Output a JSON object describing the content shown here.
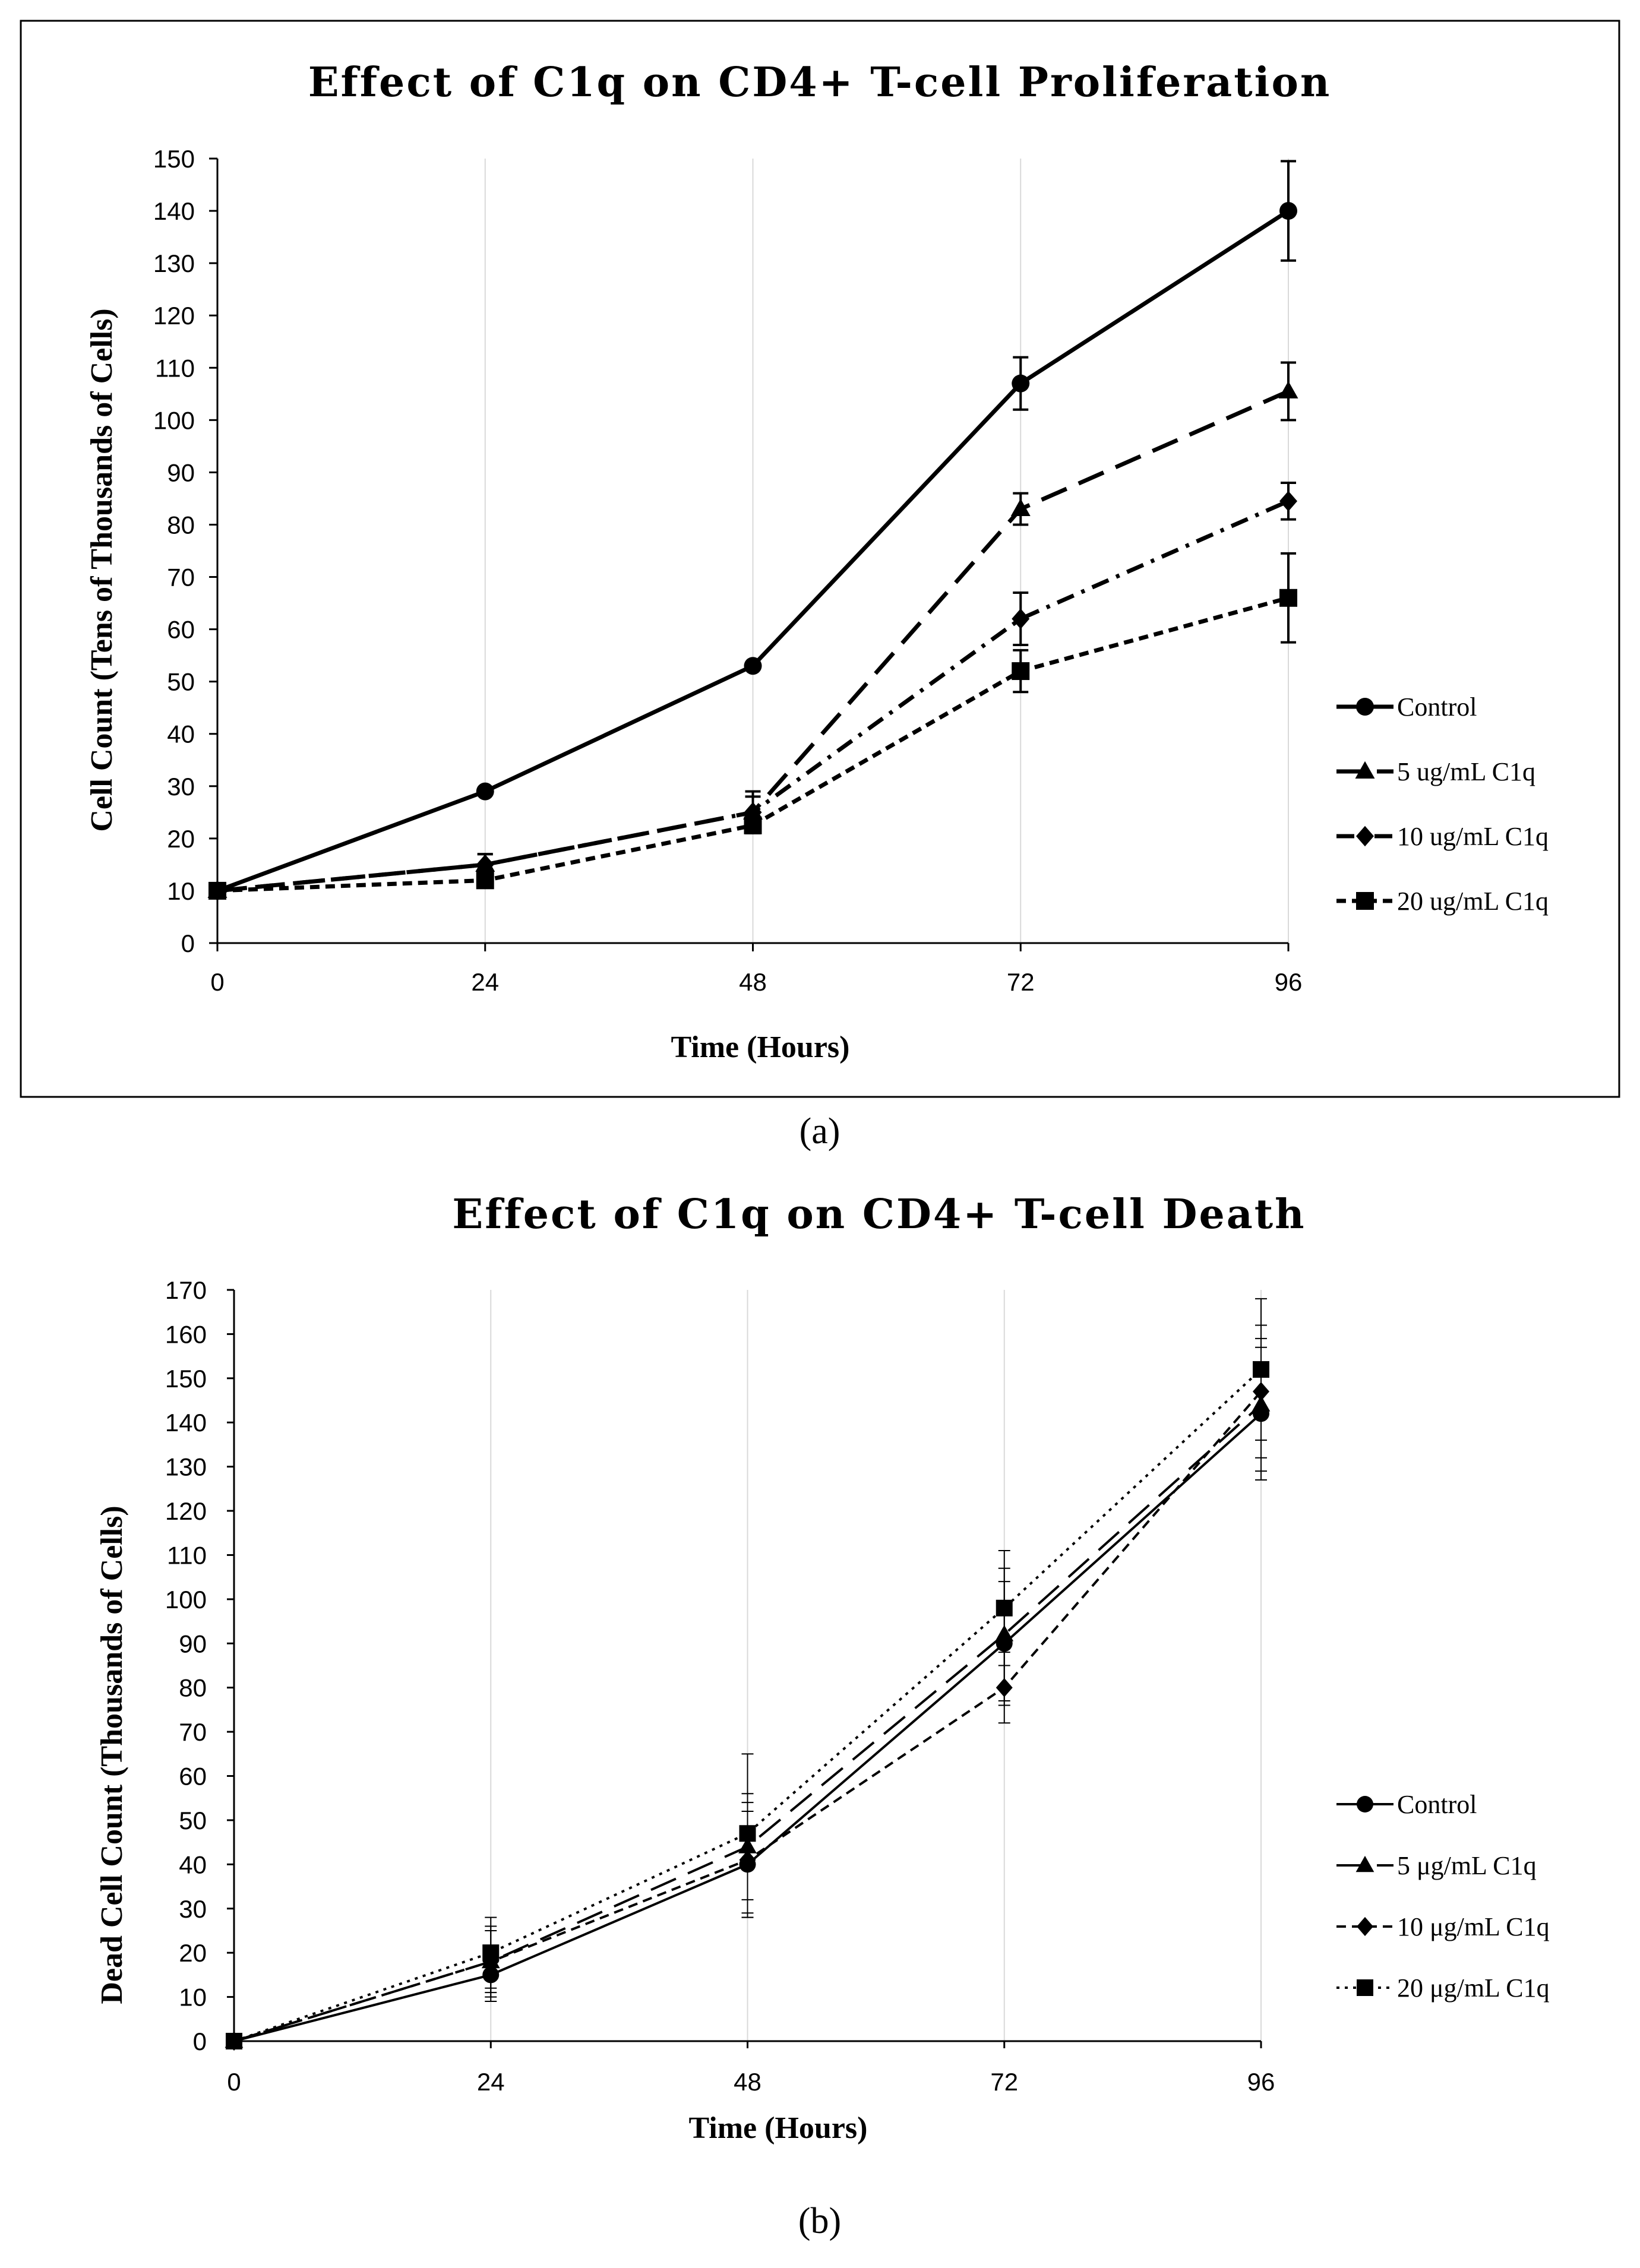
{
  "figure_labels": {
    "a": "(a)",
    "b": "(b)"
  },
  "colors": {
    "line": "#000000",
    "grid": "#d9d9d9",
    "frame": "#000000"
  },
  "chart_data": [
    {
      "id": "a",
      "type": "line",
      "title": "Effect of C1q on CD4+ T-cell Proliferation",
      "xlabel": "Time (Hours)",
      "ylabel": "Cell Count (Tens of Thousands of Cells)",
      "x": [
        0,
        24,
        48,
        72,
        96
      ],
      "xlim": [
        0,
        96
      ],
      "ylim": [
        0,
        150
      ],
      "ytick_step": 10,
      "grid": "vertical",
      "legend": "right",
      "series": [
        {
          "name": "Control",
          "marker": "circle",
          "dash": "solid",
          "values": [
            10,
            29,
            53,
            107,
            140
          ],
          "errors": [
            0,
            0,
            0,
            5,
            9.5
          ]
        },
        {
          "name": "5 ug/mL C1q",
          "marker": "triangle",
          "dash": "longdash",
          "values": [
            10,
            15,
            25,
            83,
            105.5
          ],
          "errors": [
            0,
            2,
            3,
            3,
            5.5
          ]
        },
        {
          "name": "10 ug/mL C1q",
          "marker": "diamond",
          "dash": "dashdot",
          "values": [
            10,
            15,
            25,
            62,
            84.5
          ],
          "errors": [
            0,
            2,
            4,
            5,
            3.5
          ]
        },
        {
          "name": "20 ug/mL C1q",
          "marker": "square",
          "dash": "shortdash",
          "values": [
            10,
            12,
            22.5,
            52,
            66
          ],
          "errors": [
            0,
            1,
            1,
            4,
            8.5
          ]
        }
      ]
    },
    {
      "id": "b",
      "type": "line",
      "title": "Effect of C1q on CD4+ T-cell Death",
      "xlabel": "Time (Hours)",
      "ylabel": "Dead Cell Count (Thousands of Cells)",
      "x": [
        0,
        24,
        48,
        72,
        96
      ],
      "xlim": [
        0,
        96
      ],
      "ylim": [
        0,
        170
      ],
      "ytick_step": 10,
      "grid": "vertical",
      "legend": "right",
      "series": [
        {
          "name": "Control",
          "marker": "circle",
          "dash": "solid",
          "values": [
            0,
            15,
            40,
            90,
            142
          ],
          "errors": [
            0,
            6,
            12,
            14,
            15
          ]
        },
        {
          "name": "5 μg/mL C1q",
          "marker": "triangle",
          "dash": "longdash",
          "values": [
            0,
            18,
            44,
            92,
            144
          ],
          "errors": [
            0,
            7,
            12,
            15,
            15
          ]
        },
        {
          "name": "10 μg/mL C1q",
          "marker": "diamond",
          "dash": "shortdash",
          "values": [
            0,
            18,
            41,
            80,
            147
          ],
          "errors": [
            0,
            8,
            13,
            8,
            15
          ]
        },
        {
          "name": "20 μg/mL C1q",
          "marker": "square",
          "dash": "dotted",
          "values": [
            0,
            20,
            47,
            98,
            152
          ],
          "errors": [
            0,
            8,
            18,
            13,
            16
          ]
        }
      ]
    }
  ]
}
